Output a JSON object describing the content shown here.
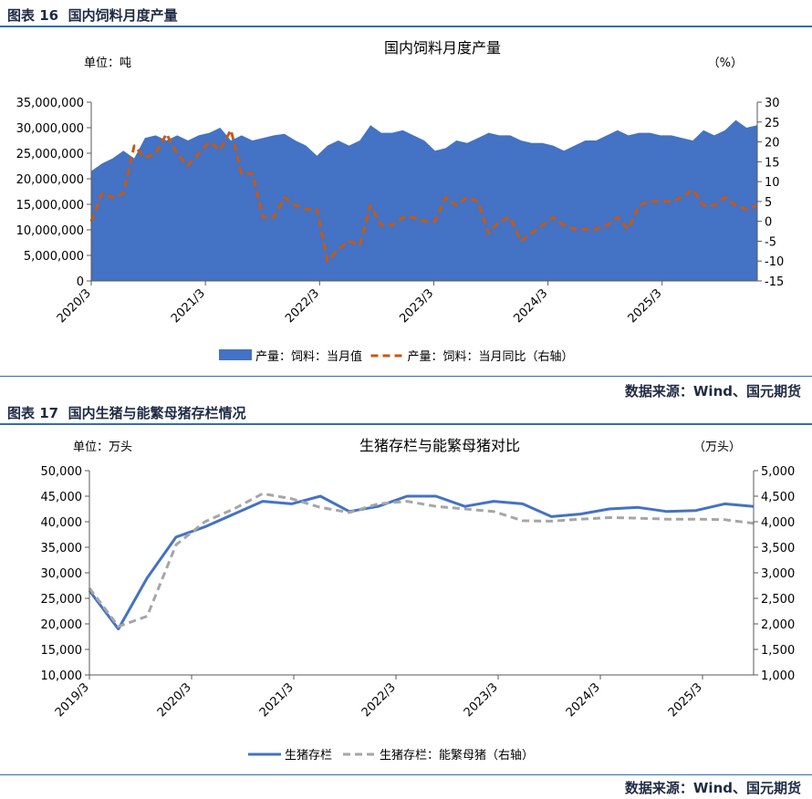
{
  "figure16": {
    "label": "图表 16",
    "heading": "国内饲料月度产量",
    "source": "数据来源：Wind、国元期货"
  },
  "figure17": {
    "label": "图表 17",
    "heading": "国内生猪与能繁母猪存栏情况",
    "source": "数据来源：Wind、国元期货"
  },
  "colors": {
    "blue": "#4472c4",
    "orange": "#c55a11",
    "gray": "#a6a6a6",
    "rule": "#2f6db5"
  },
  "chart_data": [
    {
      "type": "area",
      "title": "国内饲料月度产量",
      "left_unit": "单位：吨",
      "right_unit": "（%）",
      "x_tick_labels": [
        "2020/3",
        "2021/3",
        "2022/3",
        "2023/3",
        "2024/3",
        "2025/3"
      ],
      "ylim": [
        0,
        35000000
      ],
      "y_ticks": [
        0,
        5000000,
        10000000,
        15000000,
        20000000,
        25000000,
        30000000,
        35000000
      ],
      "y_tick_labels": [
        "0",
        "5,000,000",
        "10,000,000",
        "15,000,000",
        "20,000,000",
        "25,000,000",
        "30,000,000",
        "35,000,000"
      ],
      "y2lim": [
        -15,
        30
      ],
      "y2_ticks": [
        -15,
        -10,
        -5,
        0,
        5,
        10,
        15,
        20,
        25,
        30
      ],
      "legend_position": "bottom",
      "series": [
        {
          "name": "产量：饲料：当月值",
          "axis": "left",
          "kind": "area",
          "values": [
            21500000,
            23000000,
            24000000,
            25500000,
            24000000,
            28000000,
            28500000,
            27500000,
            28500000,
            27500000,
            28500000,
            29000000,
            30000000,
            27500000,
            28500000,
            27500000,
            28000000,
            28500000,
            28800000,
            27500000,
            26500000,
            24500000,
            26500000,
            27500000,
            26500000,
            27500000,
            30500000,
            29000000,
            29000000,
            29500000,
            28500000,
            27500000,
            25500000,
            26000000,
            27500000,
            27000000,
            28000000,
            29000000,
            28500000,
            28500000,
            27500000,
            27000000,
            27000000,
            26500000,
            25500000,
            26500000,
            27500000,
            27500000,
            28500000,
            29500000,
            28500000,
            29000000,
            29000000,
            28500000,
            28500000,
            28000000,
            27500000,
            29500000,
            28500000,
            29500000,
            31500000,
            30000000,
            30500000
          ]
        },
        {
          "name": "产量：饲料：当月同比（右轴）",
          "axis": "right",
          "kind": "dashed-line",
          "values": [
            0,
            7,
            6,
            7,
            19,
            16,
            17,
            22,
            17,
            14,
            17,
            20,
            18,
            23,
            12,
            12,
            1,
            1,
            6,
            4,
            3,
            3,
            -10,
            -7,
            -5,
            -6,
            4,
            -1,
            -1,
            1,
            1,
            0,
            0,
            6,
            4,
            6,
            5,
            -3,
            0,
            1,
            -5,
            -3,
            -1,
            1,
            -1,
            -2,
            -2,
            -2,
            -1,
            1,
            -2,
            4,
            5,
            5,
            5,
            6,
            8,
            4,
            4,
            6,
            4,
            3,
            4
          ]
        }
      ]
    },
    {
      "type": "line",
      "title": "生猪存栏与能繁母猪对比",
      "left_unit": "单位：万头",
      "right_unit": "（万头）",
      "x_tick_labels": [
        "2019/3",
        "2020/3",
        "2021/3",
        "2022/3",
        "2023/3",
        "2024/3",
        "2025/3"
      ],
      "ylim": [
        10000,
        50000
      ],
      "y_ticks": [
        10000,
        15000,
        20000,
        25000,
        30000,
        35000,
        40000,
        45000,
        50000
      ],
      "y_tick_labels": [
        "10,000",
        "15,000",
        "20,000",
        "25,000",
        "30,000",
        "35,000",
        "40,000",
        "45,000",
        "50,000"
      ],
      "y2lim": [
        1000,
        5000
      ],
      "y2_ticks": [
        1000,
        1500,
        2000,
        2500,
        3000,
        3500,
        4000,
        4500,
        5000
      ],
      "y2_tick_labels": [
        "1,000",
        "1,500",
        "2,000",
        "2,500",
        "3,000",
        "3,500",
        "4,000",
        "4,500",
        "5,000"
      ],
      "legend_position": "bottom",
      "series": [
        {
          "name": "生猪存栏",
          "axis": "left",
          "kind": "solid-line",
          "values": [
            26500,
            19000,
            29000,
            37000,
            39000,
            41500,
            44000,
            43500,
            45000,
            42000,
            43000,
            45000,
            45000,
            43000,
            44000,
            43500,
            41000,
            41500,
            42500,
            42800,
            42000,
            42200,
            43500,
            43000
          ]
        },
        {
          "name": "生猪存栏：能繁母猪（右轴）",
          "axis": "right",
          "kind": "dashed-line",
          "values": [
            2700,
            1950,
            2150,
            3550,
            4000,
            4250,
            4550,
            4450,
            4280,
            4180,
            4350,
            4400,
            4300,
            4250,
            4200,
            4020,
            4010,
            4050,
            4080,
            4070,
            4050,
            4050,
            4040,
            3970
          ]
        }
      ]
    }
  ]
}
